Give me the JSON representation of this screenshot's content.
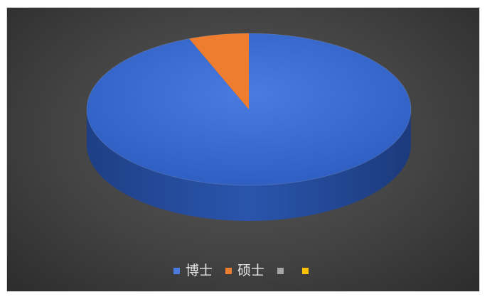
{
  "chart_data": {
    "type": "pie",
    "title": "",
    "categories": [
      "博士",
      "硕士",
      "",
      ""
    ],
    "values": [
      94,
      6,
      0,
      0
    ],
    "colors": [
      "#3f6fd0",
      "#ef7d2f",
      "#a5a5a5",
      "#ffc000"
    ],
    "legend_position": "bottom",
    "style": "3d"
  }
}
